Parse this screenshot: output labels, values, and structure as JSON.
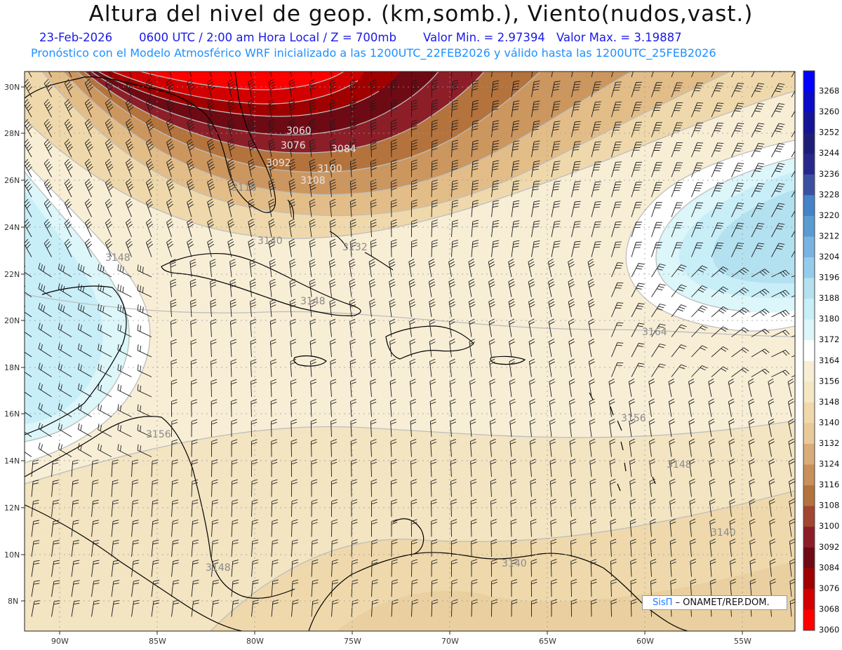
{
  "title": "Altura del nivel de geop. (km,somb.), Viento(nudos,vast.)",
  "subtitle": {
    "date": "23-Feb-2026",
    "time": "0600 UTC / 2:00 am Hora Local / Z = 700mb",
    "min": "Valor Min. = 2.97394",
    "max": "Valor Max. = 3.19887",
    "model": "Pronóstico con el Modelo Atmosférico WRF inicializado a las 1200UTC_22FEB2026 y válido hasta las  1200UTC_25FEB2026"
  },
  "axes": {
    "lat_labels": [
      "30N",
      "28N",
      "26N",
      "24N",
      "22N",
      "20N",
      "18N",
      "16N",
      "14N",
      "12N",
      "10N",
      "8N"
    ],
    "lon_labels": [
      "90W",
      "85W",
      "80W",
      "75W",
      "70W",
      "65W",
      "60W",
      "55W"
    ]
  },
  "colorbar": {
    "labels": [
      "3268",
      "3260",
      "3252",
      "3244",
      "3236",
      "3228",
      "3220",
      "3212",
      "3204",
      "3196",
      "3188",
      "3180",
      "3172",
      "3164",
      "3156",
      "3148",
      "3140",
      "3132",
      "3124",
      "3116",
      "3108",
      "3100",
      "3092",
      "3084",
      "3076",
      "3068",
      "3060"
    ],
    "colors": [
      "#0000ff",
      "#0a0ac8",
      "#141496",
      "#1e1e78",
      "#28288c",
      "#3c50a0",
      "#4682c8",
      "#5a9bd2",
      "#78b4e1",
      "#96cceb",
      "#b4e1f0",
      "#c8eef8",
      "#dcf6fa",
      "#ffffff",
      "#f8eed6",
      "#f5e6c3",
      "#efd9ac",
      "#e8c99a",
      "#d9ac78",
      "#c8905a",
      "#b4733c",
      "#a04632",
      "#8c1e28",
      "#6e0a14",
      "#a00000",
      "#d20000",
      "#ff0000"
    ]
  },
  "contour_labels": [
    "3060",
    "3076",
    "3084",
    "3092",
    "3100",
    "3108",
    "3116",
    "3132",
    "3140",
    "3148",
    "3164",
    "3156",
    "3148",
    "3156",
    "3148",
    "3140",
    "3140",
    "3148"
  ],
  "credit": {
    "brand": "SisΠ",
    "text": " – ONAMET/REP.DOM."
  }
}
